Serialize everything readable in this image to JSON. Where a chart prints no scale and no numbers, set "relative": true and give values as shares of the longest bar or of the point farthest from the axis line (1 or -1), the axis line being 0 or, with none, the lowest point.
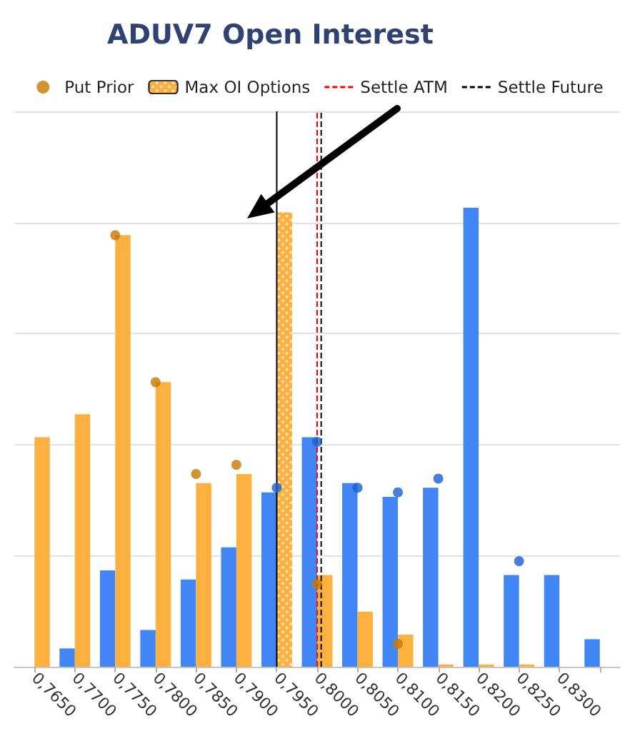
{
  "chart_data": {
    "type": "bar",
    "title": "ADUV7 Open Interest",
    "relative": true,
    "x": [
      0.765,
      0.77,
      0.775,
      0.78,
      0.785,
      0.79,
      0.795,
      0.8,
      0.805,
      0.81,
      0.815,
      0.82,
      0.825,
      0.83,
      0.835
    ],
    "xlim": [
      0.7625,
      0.8375
    ],
    "xticks": [
      {
        "value": 0.765,
        "label": "0,7650"
      },
      {
        "value": 0.77,
        "label": "0,7700"
      },
      {
        "value": 0.775,
        "label": "0,7750"
      },
      {
        "value": 0.78,
        "label": "0,7800"
      },
      {
        "value": 0.785,
        "label": "0,7850"
      },
      {
        "value": 0.79,
        "label": "0,7900"
      },
      {
        "value": 0.795,
        "label": "0,7950"
      },
      {
        "value": 0.8,
        "label": "0,8000"
      },
      {
        "value": 0.805,
        "label": "0,8050"
      },
      {
        "value": 0.81,
        "label": "0,8100"
      },
      {
        "value": 0.815,
        "label": "0,8150"
      },
      {
        "value": 0.82,
        "label": "0,8200"
      },
      {
        "value": 0.825,
        "label": "0,8250"
      },
      {
        "value": 0.83,
        "label": "0,8300"
      },
      {
        "value": 0.835,
        "label": null
      }
    ],
    "series": [
      {
        "color": "#4285f4",
        "values": [
          null,
          0.04,
          0.21,
          0.08,
          0.19,
          0.26,
          0.38,
          0.5,
          0.4,
          0.37,
          0.39,
          1,
          0.2,
          0.2,
          0.06
        ]
      },
      {
        "color": "#fbb040",
        "values": [
          0.5,
          0.55,
          0.94,
          0.62,
          0.4,
          0.42,
          null,
          0.2,
          0.12,
          0.07,
          0.005,
          0.005,
          0.005,
          null,
          null
        ]
      },
      {
        "type": "scatter",
        "color": "#1a5fd0",
        "values": [
          null,
          null,
          null,
          null,
          null,
          null,
          0.39,
          0.49,
          0.39,
          0.38,
          0.41,
          null,
          0.23,
          null,
          null
        ]
      },
      {
        "type": "scatter",
        "name": "Put Prior",
        "color": "#c77800",
        "values": [
          null,
          null,
          0.94,
          0.62,
          0.42,
          0.44,
          null,
          0.18,
          null,
          0.05,
          null,
          null,
          null,
          null,
          null
        ]
      },
      {
        "name": "Max OI Options",
        "color": "#fbb040",
        "values": [
          null,
          null,
          null,
          null,
          null,
          null,
          0.99,
          null,
          null,
          null,
          null,
          null,
          null,
          null,
          null
        ]
      }
    ],
    "ref_lines": [
      {
        "axis": "x",
        "value": 0.795,
        "color": "#000000",
        "line_style": "solid"
      },
      {
        "axis": "x",
        "value": 0.8,
        "label": "Settle ATM",
        "color": "#ff0000",
        "line_style": "dashed"
      },
      {
        "axis": "x",
        "value": 0.8005,
        "label": "Settle Future",
        "color": "#000000",
        "line_style": "dashed"
      }
    ],
    "legend": "top",
    "grid": "y",
    "marker": "circle"
  }
}
